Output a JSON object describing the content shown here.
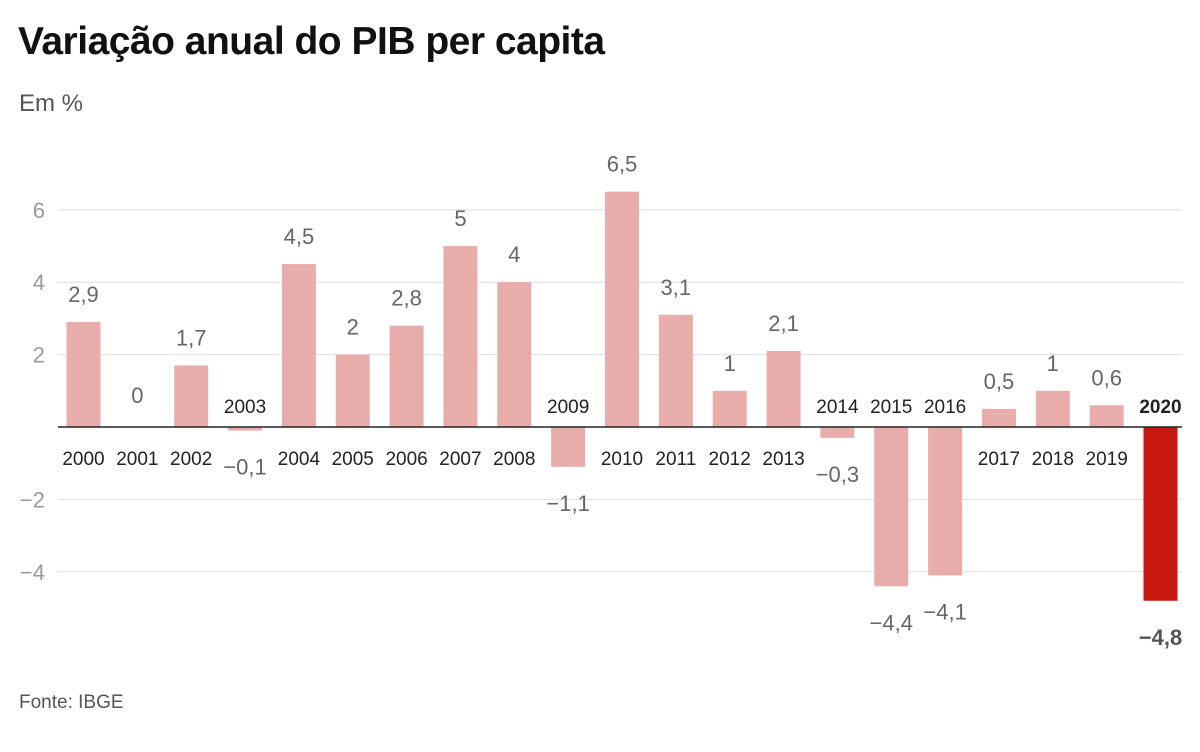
{
  "header": {
    "title": "Variação anual do PIB per capita",
    "subtitle": "Em %"
  },
  "footer": {
    "source": "Fonte: IBGE"
  },
  "colors": {
    "bar": "#e8adab",
    "highlight": "#c8170f",
    "grid": "#dddddd",
    "axis": "#222222"
  },
  "chart_data": {
    "type": "bar",
    "title": "Variação anual do PIB per capita",
    "subtitle": "Em %",
    "xlabel": "",
    "ylabel": "",
    "ylim": [
      -6,
      7
    ],
    "yticks": [
      {
        "value": 6,
        "label": "6"
      },
      {
        "value": 4,
        "label": "4"
      },
      {
        "value": 2,
        "label": "2"
      },
      {
        "value": -2,
        "label": "−2"
      },
      {
        "value": -4,
        "label": "−4"
      }
    ],
    "grid": true,
    "highlight": "2020",
    "categories": [
      "2000",
      "2001",
      "2002",
      "2003",
      "2004",
      "2005",
      "2006",
      "2007",
      "2008",
      "2009",
      "2010",
      "2011",
      "2012",
      "2013",
      "2014",
      "2015",
      "2016",
      "2017",
      "2018",
      "2019",
      "2020"
    ],
    "values": [
      2.9,
      0,
      1.7,
      -0.1,
      4.5,
      2,
      2.8,
      5,
      4,
      -1.1,
      6.5,
      3.1,
      1,
      2.1,
      -0.3,
      -4.4,
      -4.1,
      0.5,
      1,
      0.6,
      -4.8
    ],
    "value_labels": [
      "2,9",
      "0",
      "1,7",
      "−0,1",
      "4,5",
      "2",
      "2,8",
      "5",
      "4",
      "−1,1",
      "6,5",
      "3,1",
      "1",
      "2,1",
      "−0,3",
      "−4,4",
      "−4,1",
      "0,5",
      "1",
      "0,6",
      "−4,8"
    ]
  }
}
